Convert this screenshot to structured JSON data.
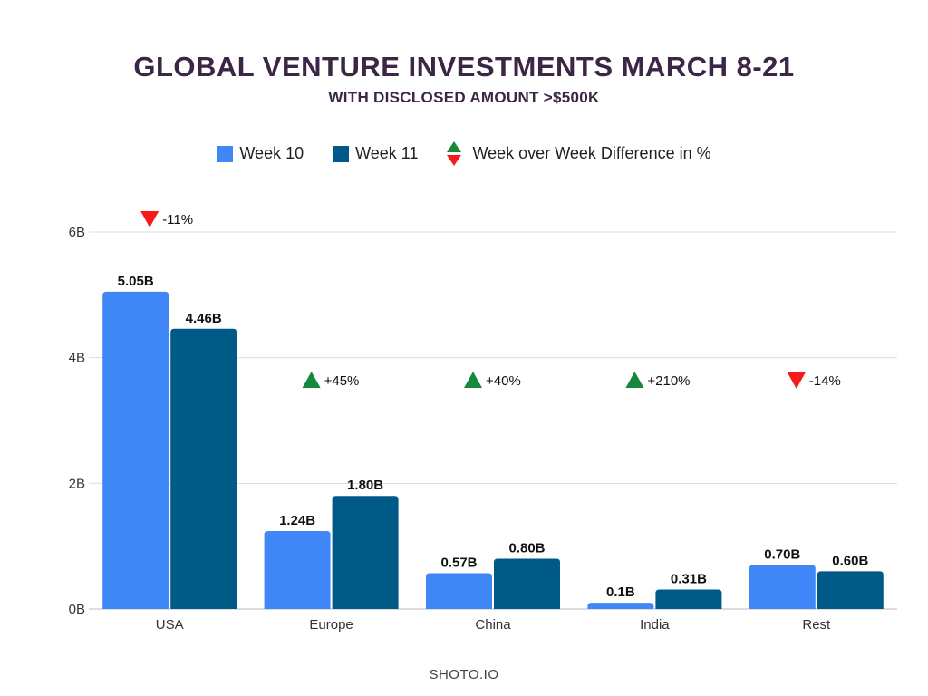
{
  "title": "GLOBAL VENTURE INVESTMENTS MARCH 8-21",
  "subtitle": "WITH DISCLOSED AMOUNT >$500K",
  "legend": {
    "week10": "Week 10",
    "week11": "Week 11",
    "diff": "Week over Week Difference in %"
  },
  "footer": "SHOTO.IO",
  "colors": {
    "week10": "#3f86f6",
    "week11": "#005a87",
    "up": "#14893b",
    "down": "#f61a1a"
  },
  "chart_data": {
    "type": "bar",
    "categories": [
      "USA",
      "Europe",
      "China",
      "India",
      "Rest"
    ],
    "series": [
      {
        "name": "Week 10",
        "values": [
          5.05,
          1.24,
          0.57,
          0.1,
          0.7
        ],
        "labels": [
          "5.05B",
          "1.24B",
          "0.57B",
          "0.1B",
          "0.70B"
        ]
      },
      {
        "name": "Week 11",
        "values": [
          4.46,
          1.8,
          0.8,
          0.31,
          0.6
        ],
        "labels": [
          "4.46B",
          "1.80B",
          "0.80B",
          "0.31B",
          "0.60B"
        ]
      }
    ],
    "differences": [
      {
        "label": "-11%",
        "direction": "down"
      },
      {
        "label": "+45%",
        "direction": "up"
      },
      {
        "label": "+40%",
        "direction": "up"
      },
      {
        "label": "+210%",
        "direction": "up"
      },
      {
        "label": "-14%",
        "direction": "down"
      }
    ],
    "yticks": [
      0,
      2,
      4,
      6
    ],
    "ytick_labels": [
      "0B",
      "2B",
      "4B",
      "6B"
    ],
    "ylim": [
      0,
      6
    ],
    "grid": true,
    "legend_position": "top"
  }
}
